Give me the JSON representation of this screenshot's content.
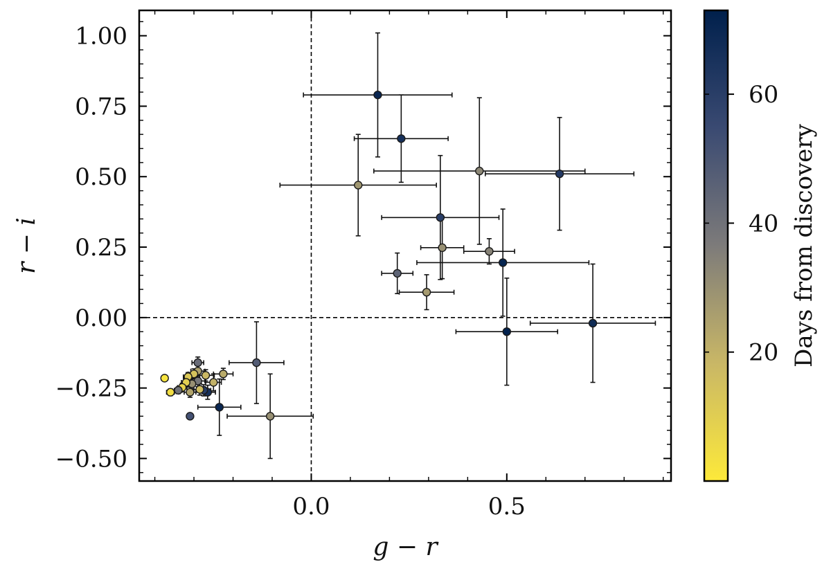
{
  "chart_data": {
    "type": "scatter",
    "xlabel": "g − r",
    "ylabel": "r − i",
    "xlim": [
      -0.44,
      0.92
    ],
    "ylim": [
      -0.58,
      1.09
    ],
    "xticks": [
      0.0,
      0.5
    ],
    "xtick_labels": [
      "0.0",
      "0.5"
    ],
    "yticks": [
      -0.5,
      -0.25,
      0.0,
      0.25,
      0.5,
      0.75,
      1.0
    ],
    "ytick_labels": [
      "−0.50",
      "−0.25",
      "0.00",
      "0.25",
      "0.50",
      "0.75",
      "1.00"
    ],
    "reference_lines": {
      "x": 0,
      "y": 0,
      "style": "dashed"
    },
    "colorbar": {
      "label": "Days from discovery",
      "range": [
        0,
        73
      ],
      "ticks": [
        20,
        40,
        60
      ],
      "tick_labels": [
        "20",
        "40",
        "60"
      ],
      "colormap": [
        "#fde93a",
        "#c9b766",
        "#7d7b7a",
        "#3a4a72",
        "#00204c"
      ]
    },
    "points": [
      {
        "x": 0.17,
        "y": 0.79,
        "xerr": 0.19,
        "yerr": 0.22,
        "days": 70
      },
      {
        "x": 0.23,
        "y": 0.635,
        "xerr": 0.12,
        "yerr": 0.155,
        "days": 66
      },
      {
        "x": 0.43,
        "y": 0.52,
        "xerr": 0.27,
        "yerr": 0.26,
        "days": 33
      },
      {
        "x": 0.635,
        "y": 0.51,
        "xerr": 0.19,
        "yerr": 0.2,
        "days": 62
      },
      {
        "x": 0.12,
        "y": 0.47,
        "xerr": 0.2,
        "yerr": 0.18,
        "days": 28
      },
      {
        "x": 0.33,
        "y": 0.355,
        "xerr": 0.15,
        "yerr": 0.22,
        "days": 60
      },
      {
        "x": 0.335,
        "y": 0.248,
        "xerr": 0.055,
        "yerr": 0.11,
        "days": 30
      },
      {
        "x": 0.455,
        "y": 0.235,
        "xerr": 0.065,
        "yerr": 0.045,
        "days": 34
      },
      {
        "x": 0.49,
        "y": 0.195,
        "xerr": 0.22,
        "yerr": 0.19,
        "days": 71
      },
      {
        "x": 0.22,
        "y": 0.157,
        "xerr": 0.04,
        "yerr": 0.072,
        "days": 45
      },
      {
        "x": 0.295,
        "y": 0.09,
        "xerr": 0.07,
        "yerr": 0.062,
        "days": 27
      },
      {
        "x": 0.72,
        "y": -0.02,
        "xerr": 0.16,
        "yerr": 0.21,
        "days": 68
      },
      {
        "x": 0.5,
        "y": -0.05,
        "xerr": 0.13,
        "yerr": 0.19,
        "days": 72
      },
      {
        "x": -0.14,
        "y": -0.16,
        "xerr": 0.07,
        "yerr": 0.145,
        "days": 48
      },
      {
        "x": -0.105,
        "y": -0.35,
        "xerr": 0.11,
        "yerr": 0.15,
        "days": 30
      },
      {
        "x": -0.235,
        "y": -0.318,
        "xerr": 0.055,
        "yerr": 0.1,
        "days": 70
      },
      {
        "x": -0.225,
        "y": -0.2,
        "xerr": 0.025,
        "yerr": 0.02,
        "days": 22
      },
      {
        "x": -0.25,
        "y": -0.23,
        "xerr": 0.02,
        "yerr": 0.03,
        "days": 20
      },
      {
        "x": -0.265,
        "y": -0.265,
        "xerr": 0.02,
        "yerr": 0.025,
        "days": 66
      },
      {
        "x": -0.275,
        "y": -0.258,
        "xerr": 0.018,
        "yerr": 0.02,
        "days": 60
      },
      {
        "x": -0.27,
        "y": -0.205,
        "xerr": 0.022,
        "yerr": 0.02,
        "days": 18
      },
      {
        "x": -0.29,
        "y": -0.16,
        "xerr": 0.015,
        "yerr": 0.02,
        "days": 42
      },
      {
        "x": -0.29,
        "y": -0.19,
        "xerr": 0.018,
        "yerr": 0.02,
        "days": 25
      },
      {
        "x": -0.29,
        "y": -0.225,
        "xerr": 0.018,
        "yerr": 0.02,
        "days": 38
      },
      {
        "x": -0.285,
        "y": -0.255,
        "xerr": 0.015,
        "yerr": 0.02,
        "days": 16
      },
      {
        "x": -0.3,
        "y": -0.2,
        "xerr": 0.015,
        "yerr": 0.018,
        "days": 14
      },
      {
        "x": -0.305,
        "y": -0.235,
        "xerr": 0.015,
        "yerr": 0.018,
        "days": 30
      },
      {
        "x": -0.31,
        "y": -0.265,
        "xerr": 0.015,
        "yerr": 0.018,
        "days": 24
      },
      {
        "x": -0.315,
        "y": -0.21,
        "xerr": 0.012,
        "yerr": 0.015,
        "days": 12
      },
      {
        "x": -0.32,
        "y": -0.23,
        "xerr": 0.012,
        "yerr": 0.015,
        "days": 10
      },
      {
        "x": -0.33,
        "y": -0.248,
        "xerr": 0.012,
        "yerr": 0.015,
        "days": 8
      },
      {
        "x": -0.34,
        "y": -0.258,
        "xerr": 0.01,
        "yerr": 0.012,
        "days": 40
      },
      {
        "x": -0.31,
        "y": -0.35,
        "xerr": 0.005,
        "yerr": 0.008,
        "days": 52
      },
      {
        "x": -0.36,
        "y": -0.265,
        "xerr": 0.01,
        "yerr": 0.012,
        "days": 4
      },
      {
        "x": -0.375,
        "y": -0.215,
        "xerr": 0.008,
        "yerr": 0.01,
        "days": 2
      }
    ]
  }
}
